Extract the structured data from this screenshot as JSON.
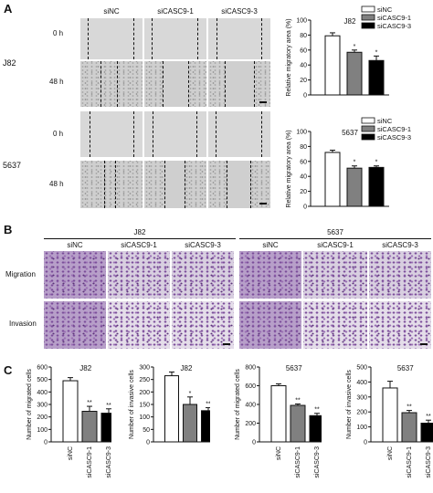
{
  "panels": {
    "a": "A",
    "b": "B",
    "c": "C"
  },
  "groups": [
    "siNC",
    "siCASC9-1",
    "siCASC9-3"
  ],
  "a": {
    "rows": {
      "j82": "J82",
      "c5637": "5637"
    },
    "times": {
      "t0": "0 h",
      "t48": "48 h"
    }
  },
  "b": {
    "j82": "J82",
    "c5637": "5637",
    "rows": {
      "migration": "Migration",
      "invasion": "Invasion"
    }
  },
  "colors": {
    "siNC": "#ffffff",
    "siCASC9-1": "#808080",
    "siCASC9-3": "#000000"
  },
  "chart_data": [
    {
      "id": "a_j82",
      "type": "bar",
      "title": "J82",
      "ylabel": "Relative migratory area (%)",
      "categories": [
        "siNC",
        "siCASC9-1",
        "siCASC9-3"
      ],
      "values": [
        79,
        57,
        46
      ],
      "errors": [
        4,
        3,
        6
      ],
      "ylim": [
        0,
        100
      ],
      "yticks": [
        0,
        20,
        40,
        60,
        80,
        100
      ],
      "sig": [
        "",
        "*",
        "*"
      ],
      "legend": [
        "siNC",
        "siCASC9-1",
        "siCASC9-3"
      ],
      "legend_position": "top-right"
    },
    {
      "id": "a_5637",
      "type": "bar",
      "title": "5637",
      "ylabel": "Relative migratory area (%)",
      "categories": [
        "siNC",
        "siCASC9-1",
        "siCASC9-3"
      ],
      "values": [
        72,
        51,
        52
      ],
      "errors": [
        3,
        3,
        2
      ],
      "ylim": [
        0,
        100
      ],
      "yticks": [
        0,
        20,
        40,
        60,
        80,
        100
      ],
      "sig": [
        "",
        "*",
        "*"
      ],
      "legend": [
        "siNC",
        "siCASC9-1",
        "siCASC9-3"
      ],
      "legend_position": "top-right"
    },
    {
      "id": "c_j82_mig",
      "type": "bar",
      "title": "J82",
      "ylabel": "Number of migrated cells",
      "categories": [
        "siNC",
        "siCASC9-1",
        "siCASC9-3"
      ],
      "values": [
        490,
        245,
        230
      ],
      "errors": [
        25,
        40,
        35
      ],
      "ylim": [
        0,
        600
      ],
      "yticks": [
        0,
        100,
        200,
        300,
        400,
        500,
        600
      ],
      "sig": [
        "",
        "**",
        "**"
      ],
      "xticklabels": false
    },
    {
      "id": "c_j82_inv",
      "type": "bar",
      "title": "J82",
      "ylabel": "Number of invasive cells",
      "categories": [
        "siNC",
        "siCASC9-1",
        "siCASC9-3"
      ],
      "values": [
        265,
        150,
        125
      ],
      "errors": [
        15,
        30,
        12
      ],
      "ylim": [
        0,
        300
      ],
      "yticks": [
        0,
        50,
        100,
        150,
        200,
        250,
        300
      ],
      "sig": [
        "",
        "*",
        "**"
      ],
      "xticklabels": false
    },
    {
      "id": "c_5637_mig",
      "type": "bar",
      "title": "5637",
      "ylabel": "Number of migrated cells",
      "categories": [
        "siNC",
        "siCASC9-1",
        "siCASC9-3"
      ],
      "values": [
        600,
        390,
        280
      ],
      "errors": [
        20,
        15,
        25
      ],
      "ylim": [
        0,
        800
      ],
      "yticks": [
        0,
        200,
        400,
        600,
        800
      ],
      "sig": [
        "",
        "**",
        "**"
      ],
      "xticklabels": true
    },
    {
      "id": "c_5637_inv",
      "type": "bar",
      "title": "5637",
      "ylabel": "Number of invasive cells",
      "categories": [
        "siNC",
        "siCASC9-1",
        "siCASC9-3"
      ],
      "values": [
        360,
        195,
        125
      ],
      "errors": [
        45,
        15,
        20
      ],
      "ylim": [
        0,
        500
      ],
      "yticks": [
        0,
        100,
        200,
        300,
        400,
        500
      ],
      "sig": [
        "",
        "**",
        "**"
      ],
      "xticklabels": true
    }
  ]
}
